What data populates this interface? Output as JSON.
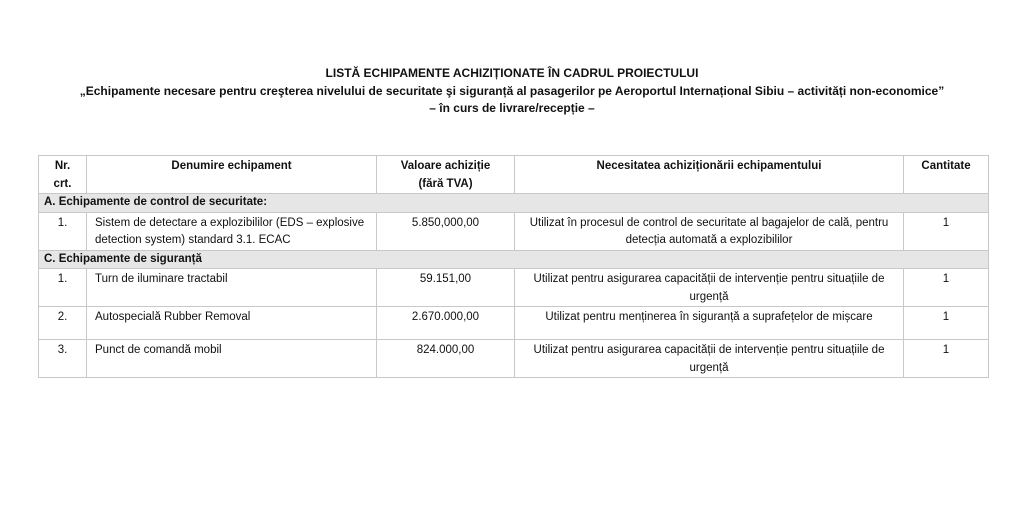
{
  "title": {
    "line1": "LISTĂ ECHIPAMENTE ACHIZIȚIONATE ÎN CADRUL PROIECTULUI",
    "line2": "„Echipamente necesare pentru creşterea nivelului de securitate şi siguranță al pasagerilor pe Aeroportul  Internațional Sibiu – activități non-economice”",
    "line3": "– în curs de livrare/recepție –"
  },
  "table": {
    "headers": [
      "Nr. crt.",
      "Denumire echipament",
      "Valoare achiziție (fără TVA)",
      "Necesitatea achiziționării echipamentului",
      "Cantitate"
    ],
    "sections": [
      {
        "label": "A. Echipamente de control de securitate:",
        "rows": [
          {
            "nr": "1.",
            "name": "Sistem de detectare a explozibililor (EDS – explosive detection system) standard 3.1. ECAC",
            "value": "5.850,000,00",
            "need": "Utilizat în procesul de control de securitate al bagajelor de cală, pentru detecția automată a explozibililor",
            "qty": "1"
          }
        ]
      },
      {
        "label": "C. Echipamente de siguranță",
        "rows": [
          {
            "nr": "1.",
            "name": "Turn de iluminare tractabil",
            "value": "59.151,00",
            "need": "Utilizat pentru asigurarea capacității de intervenție pentru situațiile de urgență",
            "qty": "1"
          },
          {
            "nr": "2.",
            "name": "Autospecială Rubber Removal",
            "value": "2.670.000,00",
            "need": "Utilizat pentru menținerea în siguranță a suprafețelor de mișcare",
            "qty": "1"
          },
          {
            "nr": "3.",
            "name": "Punct de comandă mobil",
            "value": "824.000,00",
            "need": "Utilizat pentru asigurarea capacității de intervenție pentru situațiile de urgență",
            "qty": "1"
          }
        ]
      }
    ]
  }
}
